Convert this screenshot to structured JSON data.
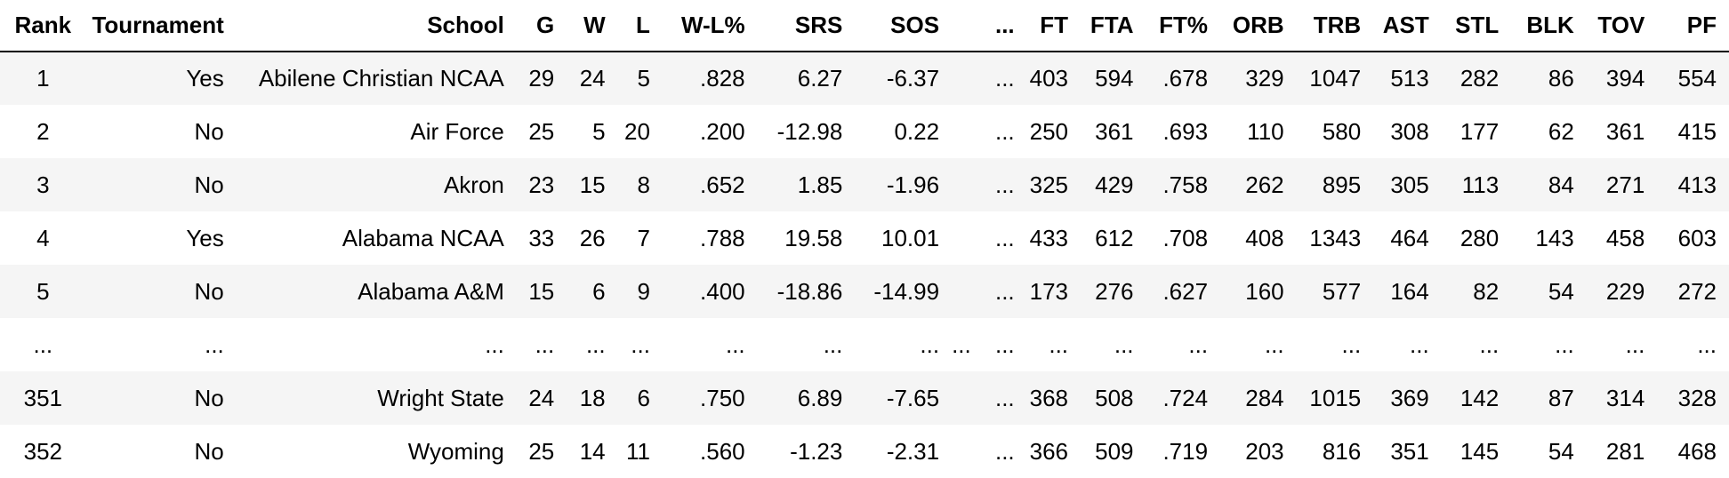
{
  "table": {
    "columns": [
      "Rank",
      "Tournament",
      "School",
      "G",
      "W",
      "L",
      "W-L%",
      "SRS",
      "SOS",
      "",
      "...",
      "FT",
      "FTA",
      "FT%",
      "ORB",
      "TRB",
      "AST",
      "STL",
      "BLK",
      "TOV",
      "PF"
    ],
    "rows": [
      [
        "1",
        "Yes",
        "Abilene Christian NCAA",
        "29",
        "24",
        "5",
        ".828",
        "6.27",
        "-6.37",
        "",
        "...",
        "403",
        "594",
        ".678",
        "329",
        "1047",
        "513",
        "282",
        "86",
        "394",
        "554"
      ],
      [
        "2",
        "No",
        "Air Force",
        "25",
        "5",
        "20",
        ".200",
        "-12.98",
        "0.22",
        "",
        "...",
        "250",
        "361",
        ".693",
        "110",
        "580",
        "308",
        "177",
        "62",
        "361",
        "415"
      ],
      [
        "3",
        "No",
        "Akron",
        "23",
        "15",
        "8",
        ".652",
        "1.85",
        "-1.96",
        "",
        "...",
        "325",
        "429",
        ".758",
        "262",
        "895",
        "305",
        "113",
        "84",
        "271",
        "413"
      ],
      [
        "4",
        "Yes",
        "Alabama NCAA",
        "33",
        "26",
        "7",
        ".788",
        "19.58",
        "10.01",
        "",
        "...",
        "433",
        "612",
        ".708",
        "408",
        "1343",
        "464",
        "280",
        "143",
        "458",
        "603"
      ],
      [
        "5",
        "No",
        "Alabama A&M",
        "15",
        "6",
        "9",
        ".400",
        "-18.86",
        "-14.99",
        "",
        "...",
        "173",
        "276",
        ".627",
        "160",
        "577",
        "164",
        "82",
        "54",
        "229",
        "272"
      ],
      [
        "...",
        "...",
        "...",
        "...",
        "...",
        "...",
        "...",
        "...",
        "...",
        "...",
        "...",
        "...",
        "...",
        "...",
        "...",
        "...",
        "...",
        "...",
        "...",
        "...",
        "..."
      ],
      [
        "351",
        "No",
        "Wright State",
        "24",
        "18",
        "6",
        ".750",
        "6.89",
        "-7.65",
        "",
        "...",
        "368",
        "508",
        ".724",
        "284",
        "1015",
        "369",
        "142",
        "87",
        "314",
        "328"
      ],
      [
        "352",
        "No",
        "Wyoming",
        "25",
        "14",
        "11",
        ".560",
        "-1.23",
        "-2.31",
        "",
        "...",
        "366",
        "509",
        ".719",
        "203",
        "816",
        "351",
        "145",
        "54",
        "281",
        "468"
      ]
    ]
  }
}
